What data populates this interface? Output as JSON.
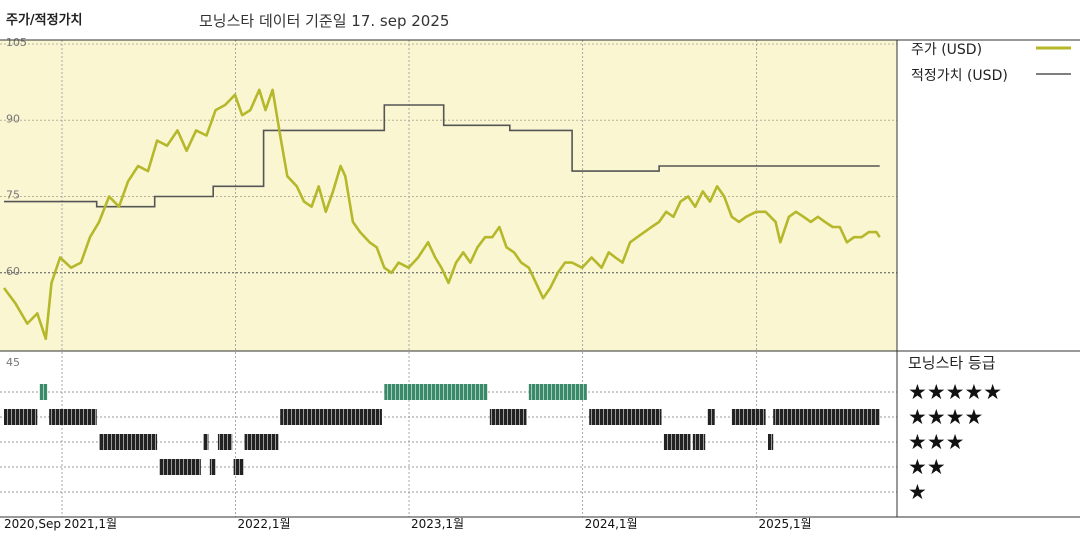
{
  "header": {
    "title": "주가/적정가치",
    "subtitle": "모닝스타 데이터 기준일 17. sep 2025"
  },
  "legend": {
    "price_label": "주가 (USD)",
    "fair_value_label": "적정가치 (USD)"
  },
  "rating_panel": {
    "title": "모닝스타 등급",
    "rows": [
      "★★★★★",
      "★★★★",
      "★★★",
      "★★",
      "★"
    ]
  },
  "colors": {
    "price": "#b5b82a",
    "fair_value": "#555555",
    "plot_bg": "#faf6d2",
    "five_star": "#3a8a6a",
    "other_stars": "#222222"
  },
  "chart_data": [
    {
      "type": "line",
      "title": "모닝스타 데이터 기준일 17. sep 2025",
      "ylim": [
        45,
        105
      ],
      "yticks": [
        105,
        90,
        75,
        60,
        45
      ],
      "xlim": [
        "2020-09-01",
        "2025-10-15"
      ],
      "xticks": [
        {
          "date": "2020-09-01",
          "label": "2020,Sep"
        },
        {
          "date": "2021-01-01",
          "label": "2021,1월"
        },
        {
          "date": "2022-01-01",
          "label": "2022,1월"
        },
        {
          "date": "2023-01-01",
          "label": "2023,1월"
        },
        {
          "date": "2024-01-01",
          "label": "2024,1월"
        },
        {
          "date": "2025-01-01",
          "label": "2025,1월"
        }
      ],
      "grid": true,
      "legend_position": "right",
      "series": [
        {
          "name": "주가 (USD)",
          "points": [
            [
              "2020-09-01",
              57
            ],
            [
              "2020-09-25",
              54
            ],
            [
              "2020-10-20",
              50
            ],
            [
              "2020-11-10",
              52
            ],
            [
              "2020-11-28",
              47
            ],
            [
              "2020-12-10",
              58
            ],
            [
              "2020-12-28",
              63
            ],
            [
              "2021-01-20",
              61
            ],
            [
              "2021-02-10",
              62
            ],
            [
              "2021-03-01",
              67
            ],
            [
              "2021-03-20",
              70
            ],
            [
              "2021-04-10",
              75
            ],
            [
              "2021-05-01",
              73
            ],
            [
              "2021-05-20",
              78
            ],
            [
              "2021-06-10",
              81
            ],
            [
              "2021-07-01",
              80
            ],
            [
              "2021-07-20",
              86
            ],
            [
              "2021-08-10",
              85
            ],
            [
              "2021-09-01",
              88
            ],
            [
              "2021-09-20",
              84
            ],
            [
              "2021-10-10",
              88
            ],
            [
              "2021-11-01",
              87
            ],
            [
              "2021-11-20",
              92
            ],
            [
              "2021-12-10",
              93
            ],
            [
              "2021-12-31",
              95
            ],
            [
              "2022-01-15",
              91
            ],
            [
              "2022-02-01",
              92
            ],
            [
              "2022-02-20",
              96
            ],
            [
              "2022-03-05",
              92
            ],
            [
              "2022-03-20",
              96
            ],
            [
              "2022-04-05",
              87
            ],
            [
              "2022-04-20",
              79
            ],
            [
              "2022-05-10",
              77
            ],
            [
              "2022-05-25",
              74
            ],
            [
              "2022-06-10",
              73
            ],
            [
              "2022-06-25",
              77
            ],
            [
              "2022-07-10",
              72
            ],
            [
              "2022-07-25",
              76
            ],
            [
              "2022-08-10",
              81
            ],
            [
              "2022-08-20",
              79
            ],
            [
              "2022-09-05",
              70
            ],
            [
              "2022-09-20",
              68
            ],
            [
              "2022-10-10",
              66
            ],
            [
              "2022-10-25",
              65
            ],
            [
              "2022-11-10",
              61
            ],
            [
              "2022-11-25",
              60
            ],
            [
              "2022-12-10",
              62
            ],
            [
              "2022-12-31",
              61
            ],
            [
              "2023-01-20",
              63
            ],
            [
              "2023-02-10",
              66
            ],
            [
              "2023-02-25",
              63
            ],
            [
              "2023-03-10",
              61
            ],
            [
              "2023-03-25",
              58
            ],
            [
              "2023-04-10",
              62
            ],
            [
              "2023-04-25",
              64
            ],
            [
              "2023-05-10",
              62
            ],
            [
              "2023-05-25",
              65
            ],
            [
              "2023-06-10",
              67
            ],
            [
              "2023-06-25",
              67
            ],
            [
              "2023-07-10",
              69
            ],
            [
              "2023-07-25",
              65
            ],
            [
              "2023-08-10",
              64
            ],
            [
              "2023-08-25",
              62
            ],
            [
              "2023-09-10",
              61
            ],
            [
              "2023-09-25",
              58
            ],
            [
              "2023-10-10",
              55
            ],
            [
              "2023-10-25",
              57
            ],
            [
              "2023-11-10",
              60
            ],
            [
              "2023-11-25",
              62
            ],
            [
              "2023-12-10",
              62
            ],
            [
              "2023-12-31",
              61
            ],
            [
              "2024-01-20",
              63
            ],
            [
              "2024-02-10",
              61
            ],
            [
              "2024-02-25",
              64
            ],
            [
              "2024-03-10",
              63
            ],
            [
              "2024-03-25",
              62
            ],
            [
              "2024-04-10",
              66
            ],
            [
              "2024-04-25",
              67
            ],
            [
              "2024-05-10",
              68
            ],
            [
              "2024-05-25",
              69
            ],
            [
              "2024-06-10",
              70
            ],
            [
              "2024-06-25",
              72
            ],
            [
              "2024-07-10",
              71
            ],
            [
              "2024-07-25",
              74
            ],
            [
              "2024-08-10",
              75
            ],
            [
              "2024-08-25",
              73
            ],
            [
              "2024-09-10",
              76
            ],
            [
              "2024-09-25",
              74
            ],
            [
              "2024-10-10",
              77
            ],
            [
              "2024-10-25",
              75
            ],
            [
              "2024-11-10",
              71
            ],
            [
              "2024-11-25",
              70
            ],
            [
              "2024-12-10",
              71
            ],
            [
              "2024-12-31",
              72
            ],
            [
              "2025-01-20",
              72
            ],
            [
              "2025-02-10",
              70
            ],
            [
              "2025-02-20",
              66
            ],
            [
              "2025-03-10",
              71
            ],
            [
              "2025-03-25",
              72
            ],
            [
              "2025-04-10",
              71
            ],
            [
              "2025-04-25",
              70
            ],
            [
              "2025-05-10",
              71
            ],
            [
              "2025-05-25",
              70
            ],
            [
              "2025-06-10",
              69
            ],
            [
              "2025-06-25",
              69
            ],
            [
              "2025-07-10",
              66
            ],
            [
              "2025-07-25",
              67
            ],
            [
              "2025-08-10",
              67
            ],
            [
              "2025-08-25",
              68
            ],
            [
              "2025-09-10",
              68
            ],
            [
              "2025-09-17",
              67
            ]
          ]
        },
        {
          "name": "적정가치 (USD)",
          "steps": [
            [
              "2020-09-01",
              74
            ],
            [
              "2021-03-15",
              73
            ],
            [
              "2021-07-15",
              75
            ],
            [
              "2021-11-15",
              77
            ],
            [
              "2022-03-01",
              88
            ],
            [
              "2022-09-15",
              88
            ],
            [
              "2022-11-10",
              93
            ],
            [
              "2023-03-15",
              89
            ],
            [
              "2023-08-01",
              88
            ],
            [
              "2023-12-10",
              80
            ],
            [
              "2024-06-10",
              81
            ],
            [
              "2025-09-17",
              81
            ]
          ]
        }
      ]
    },
    {
      "type": "timeline",
      "title": "모닝스타 등급",
      "categories": [
        "★★★★★",
        "★★★★",
        "★★★",
        "★★",
        "★"
      ],
      "segments": [
        {
          "rating": 5,
          "start": "2020-11-15",
          "end": "2020-12-01"
        },
        {
          "rating": 5,
          "start": "2022-11-10",
          "end": "2023-06-15"
        },
        {
          "rating": 5,
          "start": "2023-09-10",
          "end": "2024-01-10"
        },
        {
          "rating": 4,
          "start": "2020-09-01",
          "end": "2020-11-10"
        },
        {
          "rating": 4,
          "start": "2020-12-05",
          "end": "2021-03-15"
        },
        {
          "rating": 4,
          "start": "2022-04-05",
          "end": "2022-11-05"
        },
        {
          "rating": 4,
          "start": "2023-06-20",
          "end": "2023-09-05"
        },
        {
          "rating": 4,
          "start": "2024-01-15",
          "end": "2024-06-15"
        },
        {
          "rating": 4,
          "start": "2024-09-20",
          "end": "2024-10-05"
        },
        {
          "rating": 4,
          "start": "2024-11-10",
          "end": "2025-01-20"
        },
        {
          "rating": 4,
          "start": "2025-02-05",
          "end": "2025-09-17"
        },
        {
          "rating": 3,
          "start": "2021-03-20",
          "end": "2021-07-20"
        },
        {
          "rating": 3,
          "start": "2021-10-25",
          "end": "2021-11-05"
        },
        {
          "rating": 3,
          "start": "2021-11-25",
          "end": "2021-12-25"
        },
        {
          "rating": 3,
          "start": "2022-01-20",
          "end": "2022-04-01"
        },
        {
          "rating": 3,
          "start": "2024-06-20",
          "end": "2024-08-15"
        },
        {
          "rating": 3,
          "start": "2024-08-20",
          "end": "2024-09-15"
        },
        {
          "rating": 3,
          "start": "2025-01-25",
          "end": "2025-02-05"
        },
        {
          "rating": 2,
          "start": "2021-07-25",
          "end": "2021-10-20"
        },
        {
          "rating": 2,
          "start": "2021-11-08",
          "end": "2021-11-20"
        },
        {
          "rating": 2,
          "start": "2021-12-28",
          "end": "2022-01-18"
        }
      ]
    }
  ]
}
